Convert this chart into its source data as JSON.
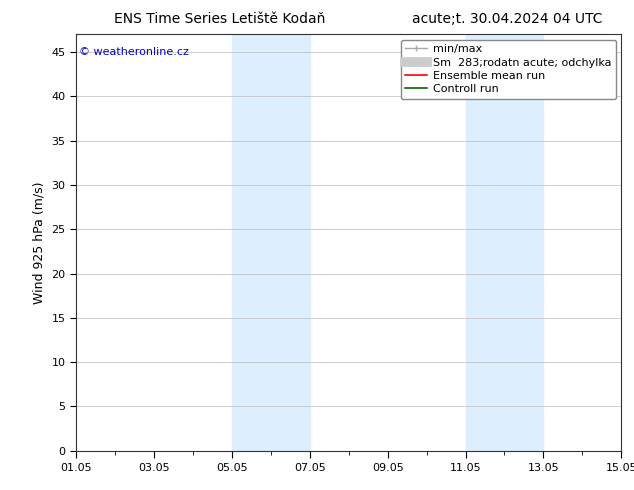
{
  "title_left": "ENS Time Series Letiště Kodaň",
  "title_right": "acute;t. 30.04.2024 04 UTC",
  "ylabel": "Wind 925 hPa (m/s)",
  "watermark": "© weatheronline.cz",
  "watermark_color": "#0000cc",
  "ylim": [
    0,
    47
  ],
  "yticks": [
    0,
    5,
    10,
    15,
    20,
    25,
    30,
    35,
    40,
    45
  ],
  "xlim": [
    0,
    14
  ],
  "xtick_labels": [
    "01.05",
    "03.05",
    "05.05",
    "07.05",
    "09.05",
    "11.05",
    "13.05",
    "15.05"
  ],
  "xtick_positions": [
    0,
    2,
    4,
    6,
    8,
    10,
    12,
    14
  ],
  "shade_regions": [
    {
      "x_start": 4.0,
      "x_end": 6.0
    },
    {
      "x_start": 10.0,
      "x_end": 12.0
    }
  ],
  "shade_color": "#ddeeff",
  "background_color": "#ffffff",
  "plot_bg_color": "#ffffff",
  "grid_color": "#bbbbbb",
  "legend_label1": "min/max",
  "legend_label2": "Sm  283;rodatn acute; odchylka",
  "legend_label3": "Ensemble mean run",
  "legend_label4": "Controll run",
  "legend_color1": "#aaaaaa",
  "legend_color2": "#cccccc",
  "legend_color3": "#ff0000",
  "legend_color4": "#006600",
  "font_size_title": 10,
  "font_size_axis": 9,
  "font_size_tick": 8,
  "font_size_legend": 8,
  "font_size_watermark": 8
}
